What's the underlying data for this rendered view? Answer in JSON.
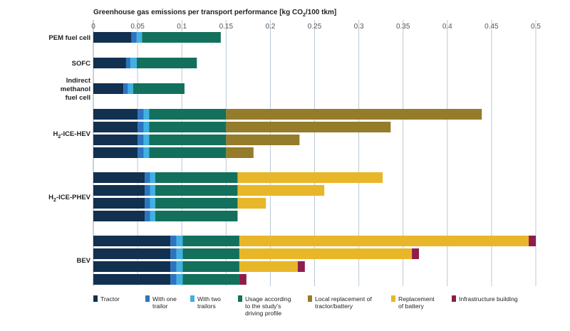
{
  "chart_data": {
    "type": "bar",
    "orientation": "horizontal-stacked",
    "title_parts": {
      "pre": "Greenhouse gas emissions per transport performance [kg CO",
      "sub": "2",
      "post": "/100 tkm]"
    },
    "x_ticks": [
      "0",
      "0.05",
      "0.1",
      "0.15",
      "0.2",
      "0.25",
      "0.3",
      "0.35",
      "0.4",
      "0.45",
      "0.5"
    ],
    "xlim": [
      0,
      0.5
    ],
    "grid": true,
    "legend_position": "bottom",
    "legend": [
      {
        "lines": [
          "Tractor"
        ],
        "color": "#12304f"
      },
      {
        "lines": [
          "With one",
          "trailor"
        ],
        "color": "#2c74bf"
      },
      {
        "lines": [
          "With two",
          "trailors"
        ],
        "color": "#3fb1e3"
      },
      {
        "lines": [
          "Usage according",
          "to the study's",
          "driving profile"
        ],
        "color": "#13705c"
      },
      {
        "lines": [
          "Local replacement of",
          "tractor/battery"
        ],
        "color": "#957c2b"
      },
      {
        "lines": [
          "Replacement",
          "of battery"
        ],
        "color": "#e8b729"
      },
      {
        "lines": [
          "Infrastructure building"
        ],
        "color": "#8e1d4c"
      }
    ],
    "groups": [
      {
        "label_lines": [
          {
            "pre": "PEM fuel cell"
          }
        ],
        "bars": [
          [
            [
              "#12304f",
              0.043
            ],
            [
              "#2c74bf",
              0.006
            ],
            [
              "#3fb1e3",
              0.006
            ],
            [
              "#13705c",
              0.089
            ]
          ]
        ]
      },
      {
        "label_lines": [
          {
            "pre": "SOFC"
          }
        ],
        "bars": [
          [
            [
              "#12304f",
              0.037
            ],
            [
              "#2c74bf",
              0.005
            ],
            [
              "#3fb1e3",
              0.007
            ],
            [
              "#13705c",
              0.068
            ]
          ]
        ]
      },
      {
        "label_lines": [
          {
            "pre": "Indirect"
          },
          {
            "pre": "methanol"
          },
          {
            "pre": "fuel cell"
          }
        ],
        "bars": [
          [
            [
              "#12304f",
              0.034
            ],
            [
              "#2c74bf",
              0.005
            ],
            [
              "#3fb1e3",
              0.006
            ],
            [
              "#13705c",
              0.058
            ]
          ]
        ]
      },
      {
        "label_lines": [
          {
            "pre": "H",
            "sub": "2",
            "post": "-ICE-HEV"
          }
        ],
        "bars": [
          [
            [
              "#12304f",
              0.05
            ],
            [
              "#2c74bf",
              0.007
            ],
            [
              "#3fb1e3",
              0.006
            ],
            [
              "#13705c",
              0.087
            ],
            [
              "#957c2b",
              0.289
            ]
          ],
          [
            [
              "#12304f",
              0.05
            ],
            [
              "#2c74bf",
              0.007
            ],
            [
              "#3fb1e3",
              0.006
            ],
            [
              "#13705c",
              0.087
            ],
            [
              "#957c2b",
              0.186
            ]
          ],
          [
            [
              "#12304f",
              0.05
            ],
            [
              "#2c74bf",
              0.007
            ],
            [
              "#3fb1e3",
              0.006
            ],
            [
              "#13705c",
              0.087
            ],
            [
              "#957c2b",
              0.083
            ]
          ],
          [
            [
              "#12304f",
              0.05
            ],
            [
              "#2c74bf",
              0.007
            ],
            [
              "#3fb1e3",
              0.006
            ],
            [
              "#13705c",
              0.087
            ],
            [
              "#957c2b",
              0.031
            ]
          ]
        ]
      },
      {
        "label_lines": [
          {
            "pre": "H",
            "sub": "2",
            "post": "-ICE-PHEV"
          }
        ],
        "bars": [
          [
            [
              "#12304f",
              0.058
            ],
            [
              "#2c74bf",
              0.006
            ],
            [
              "#3fb1e3",
              0.006
            ],
            [
              "#13705c",
              0.093
            ],
            [
              "#e8b729",
              0.164
            ]
          ],
          [
            [
              "#12304f",
              0.058
            ],
            [
              "#2c74bf",
              0.006
            ],
            [
              "#3fb1e3",
              0.006
            ],
            [
              "#13705c",
              0.093
            ],
            [
              "#e8b729",
              0.098
            ]
          ],
          [
            [
              "#12304f",
              0.058
            ],
            [
              "#2c74bf",
              0.006
            ],
            [
              "#3fb1e3",
              0.006
            ],
            [
              "#13705c",
              0.093
            ],
            [
              "#e8b729",
              0.032
            ]
          ],
          [
            [
              "#12304f",
              0.058
            ],
            [
              "#2c74bf",
              0.006
            ],
            [
              "#3fb1e3",
              0.006
            ],
            [
              "#13705c",
              0.093
            ],
            [
              "#e8b729",
              0.0
            ]
          ]
        ]
      },
      {
        "label_lines": [
          {
            "pre": "BEV"
          }
        ],
        "bars": [
          [
            [
              "#12304f",
              0.087
            ],
            [
              "#2c74bf",
              0.007
            ],
            [
              "#3fb1e3",
              0.007
            ],
            [
              "#13705c",
              0.064
            ],
            [
              "#e8b729",
              0.327
            ],
            [
              "#8e1d4c",
              0.008
            ]
          ],
          [
            [
              "#12304f",
              0.087
            ],
            [
              "#2c74bf",
              0.007
            ],
            [
              "#3fb1e3",
              0.007
            ],
            [
              "#13705c",
              0.064
            ],
            [
              "#e8b729",
              0.195
            ],
            [
              "#8e1d4c",
              0.008
            ]
          ],
          [
            [
              "#12304f",
              0.087
            ],
            [
              "#2c74bf",
              0.007
            ],
            [
              "#3fb1e3",
              0.007
            ],
            [
              "#13705c",
              0.064
            ],
            [
              "#e8b729",
              0.066
            ],
            [
              "#8e1d4c",
              0.008
            ]
          ],
          [
            [
              "#12304f",
              0.087
            ],
            [
              "#2c74bf",
              0.007
            ],
            [
              "#3fb1e3",
              0.007
            ],
            [
              "#13705c",
              0.064
            ],
            [
              "#e8b729",
              0.0
            ],
            [
              "#8e1d4c",
              0.008
            ]
          ]
        ]
      }
    ]
  }
}
